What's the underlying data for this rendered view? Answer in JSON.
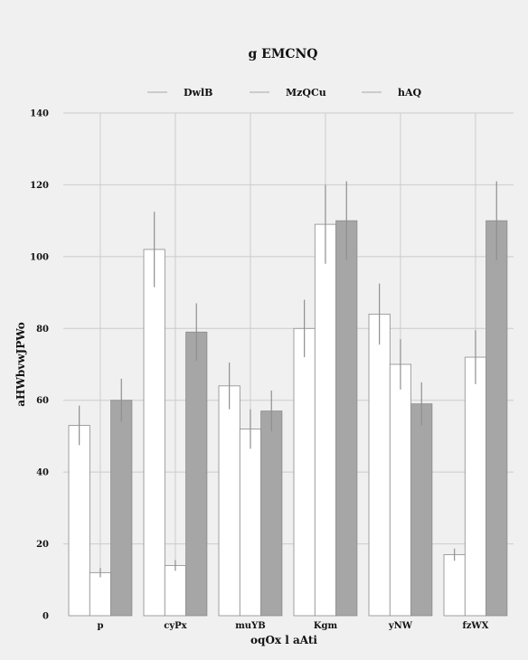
{
  "chart_data": {
    "type": "bar",
    "title": "g EMCNQ",
    "xlabel": "oqOx l aAti",
    "ylabel": "aHWbvwJPWo",
    "categories": [
      "p",
      "cyPx",
      "muYB",
      "Kgm",
      "yNW",
      "fzWX"
    ],
    "ylim": [
      0,
      140
    ],
    "yticks": [
      0,
      20,
      40,
      60,
      80,
      100,
      120,
      140
    ],
    "grid": true,
    "legend_position": "top",
    "series": [
      {
        "name": "DwlB",
        "color": "#ffffff",
        "values": [
          53,
          102,
          64,
          80,
          84,
          17
        ],
        "errors": [
          5.5,
          10.5,
          6.5,
          8,
          8.5,
          1.7
        ]
      },
      {
        "name": "MzQCu",
        "color": "#ffffff",
        "values": [
          12,
          14,
          52,
          109,
          70,
          72
        ],
        "errors": [
          1.3,
          1.5,
          5.5,
          11,
          7,
          7.5
        ]
      },
      {
        "name": "hAQ",
        "color": "#a6a6a6",
        "values": [
          60,
          79,
          57,
          110,
          59,
          110
        ],
        "errors": [
          6,
          8,
          5.7,
          11,
          6,
          11
        ]
      }
    ]
  }
}
